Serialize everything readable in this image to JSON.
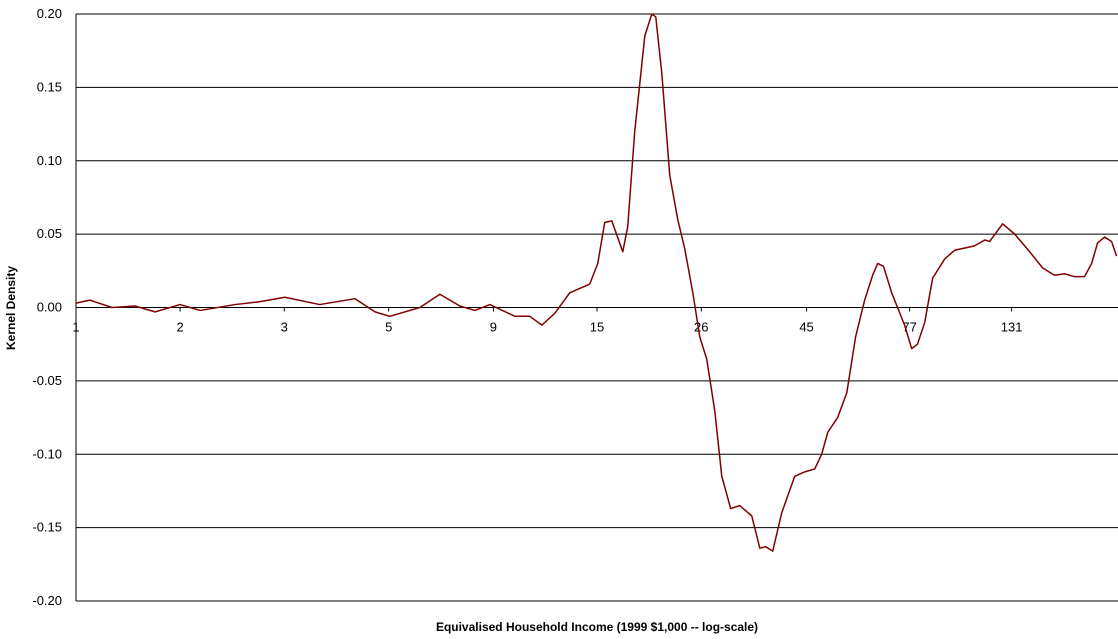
{
  "chart_data": {
    "type": "line",
    "xlabel": "Equivalised Household Income (1999 $1,000 -- log-scale)",
    "ylabel": "Kernel Density",
    "xscale": "log",
    "grid": true,
    "xlim": [
      1,
      228
    ],
    "xticks": [
      1,
      {
        "value": 1.72,
        "label": "2"
      },
      {
        "value": 2.96,
        "label": "3"
      },
      {
        "value": 5.1,
        "label": "5"
      },
      {
        "value": 8.8,
        "label": "9"
      },
      {
        "value": 15.1,
        "label": "15"
      },
      26,
      45,
      77,
      131
    ],
    "ylim": [
      -0.2,
      0.2
    ],
    "yticks": [
      {
        "value": -0.2,
        "label": "-0.20"
      },
      {
        "value": -0.15,
        "label": "-0.15"
      },
      {
        "value": -0.1,
        "label": "-0.10"
      },
      {
        "value": -0.05,
        "label": "-0.05"
      },
      {
        "value": 0,
        "label": "0.00"
      },
      {
        "value": 0.05,
        "label": "0.05"
      },
      {
        "value": 0.1,
        "label": "0.10"
      },
      {
        "value": 0.15,
        "label": "0.15"
      },
      {
        "value": 0.2,
        "label": "0.20"
      }
    ],
    "x": [
      1,
      1.076,
      1.206,
      1.36,
      1.51,
      1.72,
      1.91,
      2.29,
      2.61,
      2.97,
      3.56,
      4.28,
      4.75,
      5.13,
      6.0,
      6.66,
      7.39,
      7.99,
      8.64,
      9.84,
      10.64,
      11.33,
      12.12,
      13.1,
      14.54,
      15.16,
      15.72,
      16.31,
      17.27,
      17.72,
      18.38,
      19.37,
      20.09,
      20.51,
      21.16,
      22.06,
      23.0,
      23.85,
      24.88,
      25.79,
      26.74,
      27.88,
      28.93,
      30.3,
      31.75,
      33.82,
      35.27,
      36.38,
      37.72,
      39.53,
      42.3,
      44.6,
      46.96,
      48.68,
      50.26,
      52.9,
      55.5,
      58.1,
      60.9,
      63.5,
      65.2,
      67.2,
      70.1,
      75.0,
      77.8,
      80.2,
      83.3,
      86.8,
      92.4,
      97.3,
      108.0,
      113.8,
      116.8,
      125.0,
      133.1,
      143.9,
      153.9,
      163.8,
      172.6,
      181.8,
      191.5,
      198.7,
      205.0,
      212.6,
      220.5,
      226.3
    ],
    "series": [
      {
        "color": "#800000",
        "values": [
          0.003,
          0.005,
          0.0,
          0.001,
          -0.003,
          0.002,
          -0.002,
          0.002,
          0.004,
          0.007,
          0.002,
          0.006,
          -0.003,
          -0.006,
          0.0,
          0.009,
          0.001,
          -0.002,
          0.002,
          -0.006,
          -0.006,
          -0.012,
          -0.004,
          0.01,
          0.016,
          0.03,
          0.058,
          0.059,
          0.038,
          0.055,
          0.12,
          0.185,
          0.2,
          0.198,
          0.16,
          0.09,
          0.06,
          0.04,
          0.01,
          -0.02,
          -0.035,
          -0.07,
          -0.115,
          -0.137,
          -0.135,
          -0.142,
          -0.164,
          -0.163,
          -0.166,
          -0.14,
          -0.115,
          -0.112,
          -0.11,
          -0.1,
          -0.085,
          -0.075,
          -0.058,
          -0.02,
          0.005,
          0.022,
          0.03,
          0.028,
          0.01,
          -0.012,
          -0.028,
          -0.025,
          -0.01,
          0.02,
          0.033,
          0.039,
          0.042,
          0.046,
          0.045,
          0.057,
          0.05,
          0.038,
          0.027,
          0.022,
          0.023,
          0.021,
          0.021,
          0.03,
          0.044,
          0.048,
          0.045,
          0.035
        ]
      }
    ]
  }
}
